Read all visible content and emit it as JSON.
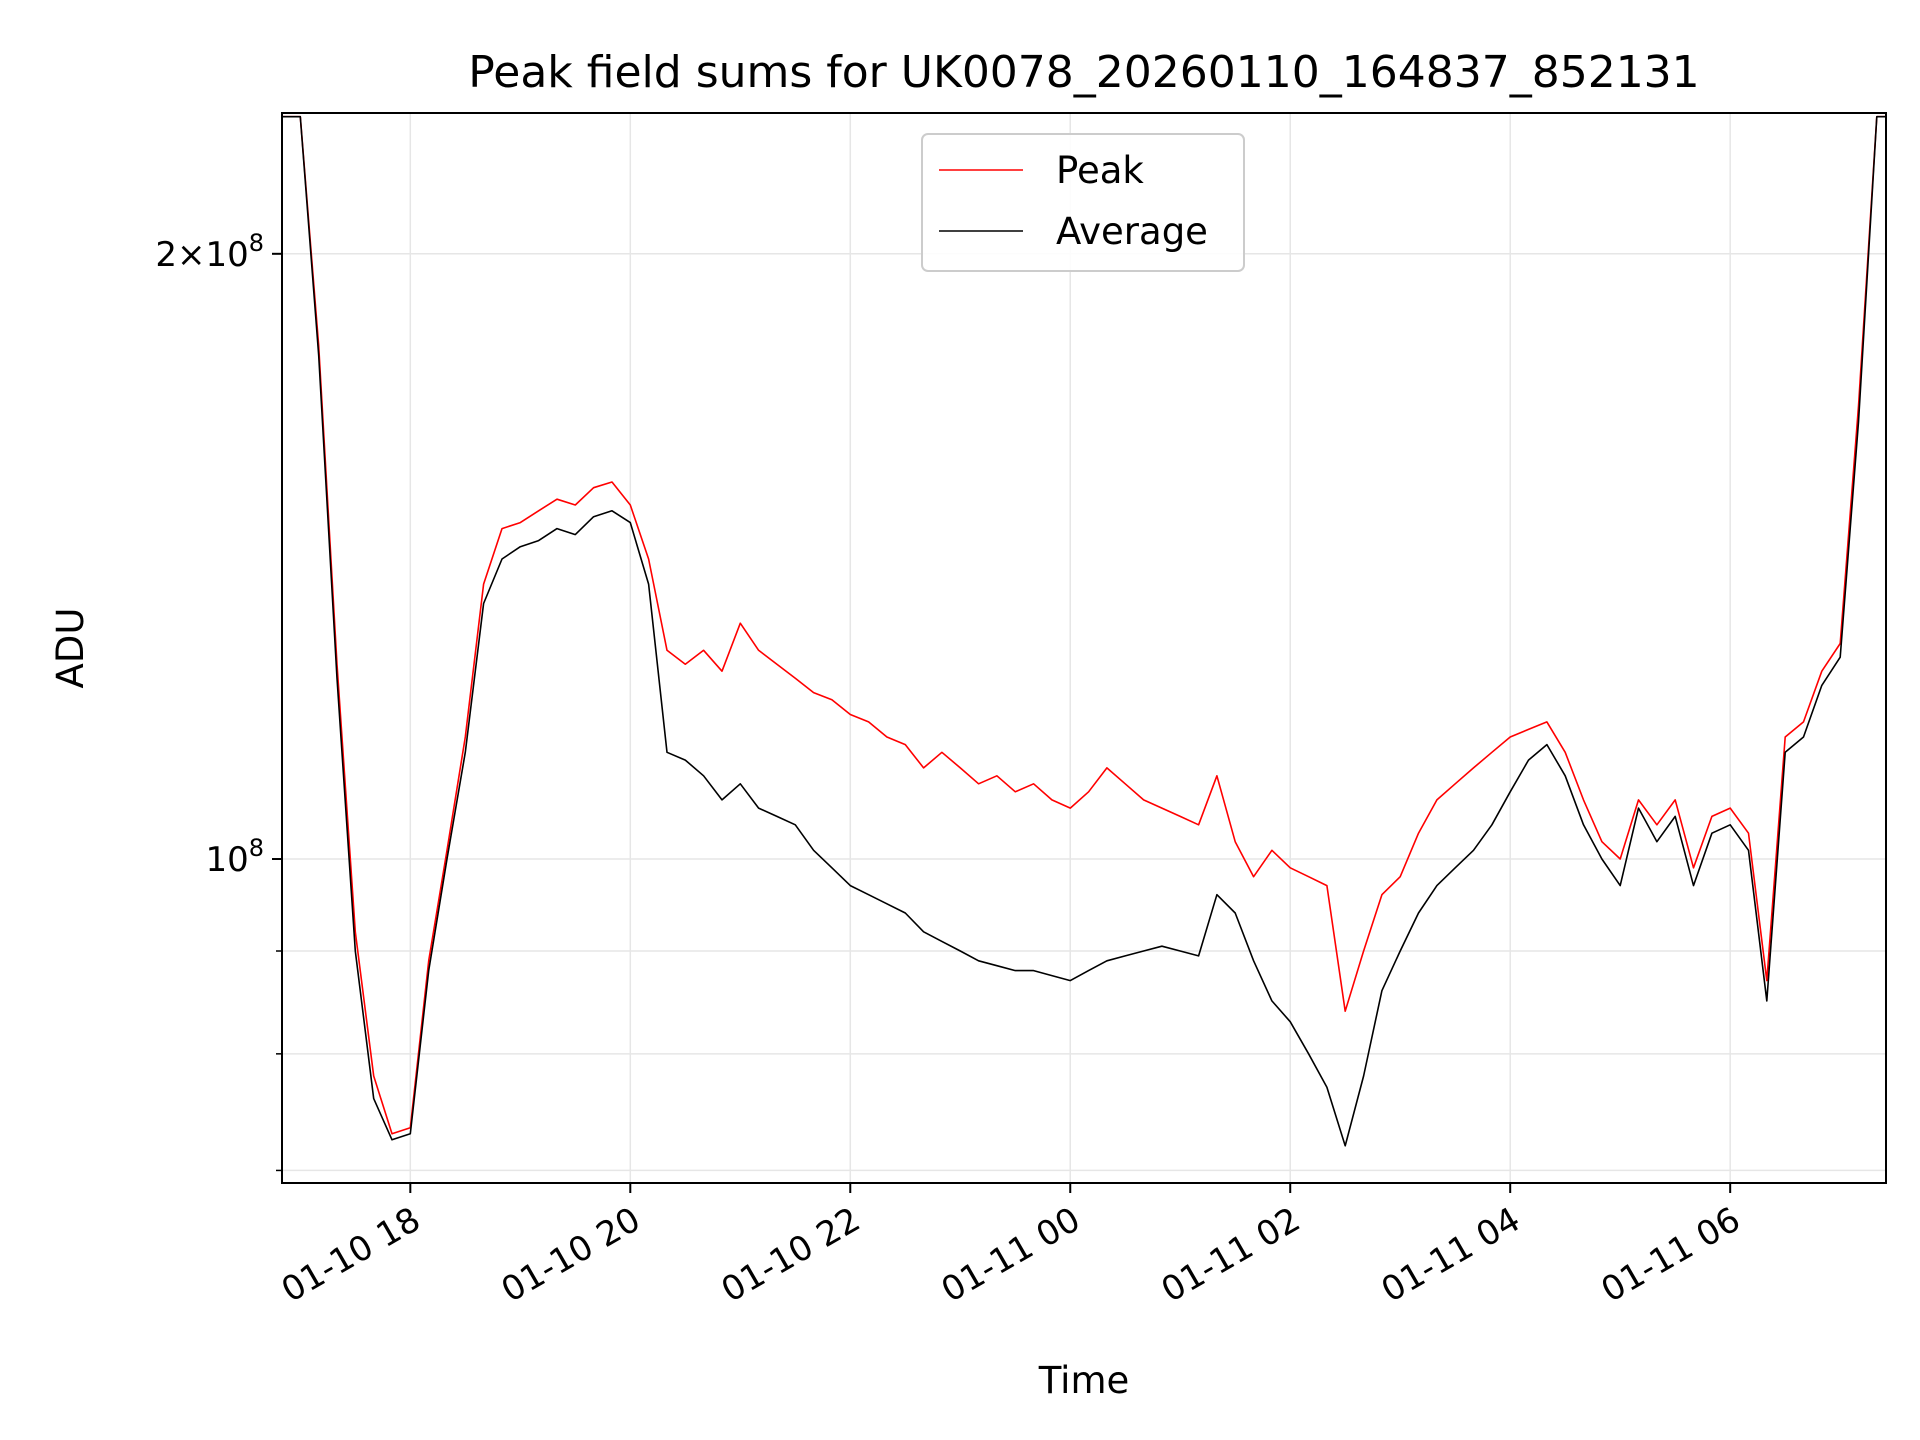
{
  "chart_data": {
    "type": "line",
    "title": "Peak field sums for UK0078_20260110_164837_852131",
    "xlabel": "Time",
    "ylabel": "ADU",
    "y_scale": "log",
    "ylim": [
      69000000,
      235000000
    ],
    "xlim": [
      "2026-01-10 16:50",
      "2026-01-11 07:25"
    ],
    "grid": true,
    "legend_position": "top-center",
    "x_ticks": [
      {
        "value": "2026-01-10 18:00",
        "label": "01-10 18"
      },
      {
        "value": "2026-01-10 20:00",
        "label": "01-10 20"
      },
      {
        "value": "2026-01-10 22:00",
        "label": "01-10 22"
      },
      {
        "value": "2026-01-11 00:00",
        "label": "01-11 00"
      },
      {
        "value": "2026-01-11 02:00",
        "label": "01-11 02"
      },
      {
        "value": "2026-01-11 04:00",
        "label": "01-11 04"
      },
      {
        "value": "2026-01-11 06:00",
        "label": "01-11 06"
      }
    ],
    "y_ticks": [
      {
        "value": 200000000,
        "label": "2×10",
        "exp": "8"
      },
      {
        "value": 100000000,
        "label": "10",
        "exp": "8"
      }
    ],
    "y_minor_ticks": [
      70000000,
      80000000,
      90000000
    ],
    "x": [
      "2026-01-10 16:50",
      "2026-01-10 17:00",
      "2026-01-10 17:10",
      "2026-01-10 17:20",
      "2026-01-10 17:30",
      "2026-01-10 17:40",
      "2026-01-10 17:50",
      "2026-01-10 18:00",
      "2026-01-10 18:10",
      "2026-01-10 18:20",
      "2026-01-10 18:30",
      "2026-01-10 18:40",
      "2026-01-10 18:50",
      "2026-01-10 19:00",
      "2026-01-10 19:10",
      "2026-01-10 19:20",
      "2026-01-10 19:30",
      "2026-01-10 19:40",
      "2026-01-10 19:50",
      "2026-01-10 20:00",
      "2026-01-10 20:10",
      "2026-01-10 20:20",
      "2026-01-10 20:30",
      "2026-01-10 20:40",
      "2026-01-10 20:50",
      "2026-01-10 21:00",
      "2026-01-10 21:10",
      "2026-01-10 21:20",
      "2026-01-10 21:30",
      "2026-01-10 21:40",
      "2026-01-10 21:50",
      "2026-01-10 22:00",
      "2026-01-10 22:10",
      "2026-01-10 22:20",
      "2026-01-10 22:30",
      "2026-01-10 22:40",
      "2026-01-10 22:50",
      "2026-01-10 23:00",
      "2026-01-10 23:10",
      "2026-01-10 23:20",
      "2026-01-10 23:30",
      "2026-01-10 23:40",
      "2026-01-10 23:50",
      "2026-01-11 00:00",
      "2026-01-11 00:10",
      "2026-01-11 00:20",
      "2026-01-11 00:30",
      "2026-01-11 00:40",
      "2026-01-11 00:50",
      "2026-01-11 01:00",
      "2026-01-11 01:10",
      "2026-01-11 01:20",
      "2026-01-11 01:30",
      "2026-01-11 01:40",
      "2026-01-11 01:50",
      "2026-01-11 02:00",
      "2026-01-11 02:10",
      "2026-01-11 02:20",
      "2026-01-11 02:30",
      "2026-01-11 02:40",
      "2026-01-11 02:50",
      "2026-01-11 03:00",
      "2026-01-11 03:10",
      "2026-01-11 03:20",
      "2026-01-11 03:30",
      "2026-01-11 03:40",
      "2026-01-11 03:50",
      "2026-01-11 04:00",
      "2026-01-11 04:10",
      "2026-01-11 04:20",
      "2026-01-11 04:30",
      "2026-01-11 04:40",
      "2026-01-11 04:50",
      "2026-01-11 05:00",
      "2026-01-11 05:10",
      "2026-01-11 05:20",
      "2026-01-11 05:30",
      "2026-01-11 05:40",
      "2026-01-11 05:50",
      "2026-01-11 06:00",
      "2026-01-11 06:10",
      "2026-01-11 06:20",
      "2026-01-11 06:30",
      "2026-01-11 06:40",
      "2026-01-11 06:50",
      "2026-01-11 07:00",
      "2026-01-11 07:10",
      "2026-01-11 07:20",
      "2026-01-11 07:25"
    ],
    "series": [
      {
        "name": "Peak",
        "color": "#ff0000",
        "values": [
          234000000,
          234000000,
          180000000,
          125000000,
          92000000,
          78000000,
          73000000,
          73500000,
          89000000,
          101000000,
          115000000,
          137000000,
          146000000,
          147000000,
          149000000,
          151000000,
          150000000,
          153000000,
          154000000,
          150000000,
          141000000,
          127000000,
          125000000,
          127000000,
          124000000,
          131000000,
          127000000,
          125000000,
          123000000,
          121000000,
          120000000,
          118000000,
          117000000,
          115000000,
          114000000,
          111000000,
          113000000,
          111000000,
          109000000,
          110000000,
          108000000,
          109000000,
          107000000,
          106000000,
          108000000,
          111000000,
          109000000,
          107000000,
          106000000,
          105000000,
          104000000,
          110000000,
          102000000,
          98000000,
          101000000,
          99000000,
          98000000,
          97000000,
          84000000,
          90000000,
          96000000,
          98000000,
          103000000,
          107000000,
          109000000,
          111000000,
          113000000,
          115000000,
          116000000,
          117000000,
          113000000,
          107000000,
          102000000,
          100000000,
          107000000,
          104000000,
          107000000,
          99000000,
          105000000,
          106000000,
          103000000,
          87000000,
          115000000,
          117000000,
          124000000,
          128000000,
          168000000,
          234000000,
          234000000
        ]
      },
      {
        "name": "Average",
        "color": "#000000",
        "values": [
          234000000,
          234000000,
          178000000,
          123000000,
          90000000,
          76000000,
          72500000,
          73000000,
          88000000,
          100000000,
          113000000,
          134000000,
          141000000,
          143000000,
          144000000,
          146000000,
          145000000,
          148000000,
          149000000,
          147000000,
          137000000,
          113000000,
          112000000,
          110000000,
          107000000,
          109000000,
          106000000,
          105000000,
          104000000,
          101000000,
          99000000,
          97000000,
          96000000,
          95000000,
          94000000,
          92000000,
          91000000,
          90000000,
          89000000,
          88500000,
          88000000,
          88000000,
          87500000,
          87000000,
          88000000,
          89000000,
          89500000,
          90000000,
          90500000,
          90000000,
          89500000,
          96000000,
          94000000,
          89000000,
          85000000,
          83000000,
          80000000,
          77000000,
          72000000,
          78000000,
          86000000,
          90000000,
          94000000,
          97000000,
          99000000,
          101000000,
          104000000,
          108000000,
          112000000,
          114000000,
          110000000,
          104000000,
          100000000,
          97000000,
          106000000,
          102000000,
          105000000,
          97000000,
          103000000,
          104000000,
          101000000,
          85000000,
          113000000,
          115000000,
          122000000,
          126000000,
          165000000,
          234000000,
          234000000
        ]
      }
    ]
  }
}
